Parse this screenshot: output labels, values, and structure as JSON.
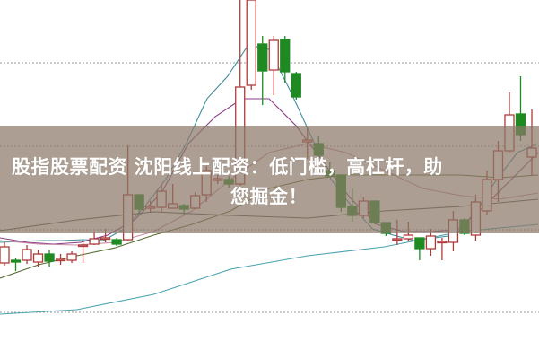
{
  "headline": {
    "line1": "股指股票配资 沈阳线上配资：低门槛，高杠杆，助",
    "line2": "您掘金！"
  },
  "colors": {
    "up": "#b03a3a",
    "down": "#1f8a22",
    "grid": "#999999",
    "banner": "#8c7868"
  },
  "chart_data": {
    "type": "candlestick",
    "grid": true,
    "grid_levels": [
      330,
      237,
      144,
      52
    ],
    "candles": [
      {
        "o": 107,
        "c": 125,
        "h": 130,
        "l": 104
      },
      {
        "o": 110,
        "c": 108,
        "h": 112,
        "l": 98
      },
      {
        "o": 110,
        "c": 122,
        "h": 127,
        "l": 106
      },
      {
        "o": 108,
        "c": 117,
        "h": 122,
        "l": 103
      },
      {
        "o": 117,
        "c": 109,
        "h": 122,
        "l": 103
      },
      {
        "o": 111,
        "c": 111,
        "h": 117,
        "l": 105
      },
      {
        "o": 110,
        "c": 117,
        "h": 120,
        "l": 107
      },
      {
        "o": 127,
        "c": 127,
        "h": 132,
        "l": 107
      },
      {
        "o": 128,
        "c": 134,
        "h": 142,
        "l": 127
      },
      {
        "o": 135,
        "c": 135,
        "h": 145,
        "l": 130
      },
      {
        "o": 133,
        "c": 128,
        "h": 135,
        "l": 126
      },
      {
        "o": 133,
        "c": 183,
        "h": 238,
        "l": 132
      },
      {
        "o": 183,
        "c": 167,
        "h": 183,
        "l": 160
      },
      {
        "o": 168,
        "c": 170,
        "h": 176,
        "l": 163
      },
      {
        "o": 169,
        "c": 187,
        "h": 195,
        "l": 163
      },
      {
        "o": 168,
        "c": 173,
        "h": 195,
        "l": 168
      },
      {
        "o": 171,
        "c": 167,
        "h": 173,
        "l": 160
      },
      {
        "o": 168,
        "c": 182,
        "h": 186,
        "l": 167
      },
      {
        "o": 183,
        "c": 210,
        "h": 215,
        "l": 175
      },
      {
        "o": 199,
        "c": 201,
        "h": 205,
        "l": 195
      },
      {
        "o": 200,
        "c": 195,
        "h": 204,
        "l": 191
      },
      {
        "o": 195,
        "c": 303,
        "h": 400,
        "l": 193
      },
      {
        "o": 305,
        "c": 400,
        "h": 400,
        "l": 300
      },
      {
        "o": 351,
        "c": 321,
        "h": 360,
        "l": 283
      },
      {
        "o": 322,
        "c": 355,
        "h": 360,
        "l": 294
      },
      {
        "o": 356,
        "c": 320,
        "h": 360,
        "l": 308
      },
      {
        "o": 318,
        "c": 292,
        "h": 320,
        "l": 289
      },
      {
        "o": 242,
        "c": 244,
        "h": 257,
        "l": 223
      },
      {
        "o": 240,
        "c": 227,
        "h": 248,
        "l": 223
      },
      {
        "o": 210,
        "c": 204,
        "h": 220,
        "l": 203
      },
      {
        "o": 205,
        "c": 169,
        "h": 205,
        "l": 164
      },
      {
        "o": 170,
        "c": 160,
        "h": 190,
        "l": 153
      },
      {
        "o": 160,
        "c": 176,
        "h": 180,
        "l": 157
      },
      {
        "o": 176,
        "c": 152,
        "h": 176,
        "l": 150
      },
      {
        "o": 152,
        "c": 140,
        "h": 152,
        "l": 137
      },
      {
        "o": 133,
        "c": 134,
        "h": 155,
        "l": 127
      },
      {
        "o": 134,
        "c": 138,
        "h": 153,
        "l": 132
      },
      {
        "o": 135,
        "c": 123,
        "h": 135,
        "l": 110
      },
      {
        "o": 123,
        "c": 137,
        "h": 145,
        "l": 115
      },
      {
        "o": 130,
        "c": 131,
        "h": 135,
        "l": 110
      },
      {
        "o": 130,
        "c": 155,
        "h": 165,
        "l": 120
      },
      {
        "o": 155,
        "c": 140,
        "h": 157,
        "l": 138
      },
      {
        "o": 138,
        "c": 175,
        "h": 183,
        "l": 132
      },
      {
        "o": 165,
        "c": 200,
        "h": 210,
        "l": 160
      },
      {
        "o": 200,
        "c": 232,
        "h": 243,
        "l": 175
      },
      {
        "o": 232,
        "c": 272,
        "h": 297,
        "l": 230
      },
      {
        "o": 273,
        "c": 250,
        "h": 315,
        "l": 243
      },
      {
        "o": 225,
        "c": 235,
        "h": 278,
        "l": 205
      }
    ],
    "moving_averages": [
      {
        "color": "#3f8f9a",
        "values": [
          130,
          131,
          132,
          132,
          133,
          132,
          145,
          170,
          200,
          240,
          290,
          315,
          350,
          345,
          300,
          250,
          200,
          170,
          145,
          138,
          132,
          135,
          138,
          165,
          200,
          230,
          240
        ]
      },
      {
        "color": "#8a3d86",
        "values": [
          135,
          130,
          128,
          130,
          138,
          155,
          185,
          240,
          270,
          290,
          290,
          260,
          220,
          180,
          150,
          142,
          142,
          144,
          170,
          200,
          230
        ]
      },
      {
        "color": "#c98aa3",
        "values": [
          132,
          128,
          127,
          130,
          142,
          165,
          200,
          230,
          240,
          230,
          210,
          190,
          182,
          178,
          185
        ]
      },
      {
        "color": "#556b2f",
        "values": [
          90,
          105,
          115,
          124,
          138,
          150,
          165,
          190,
          200,
          205,
          205,
          205,
          205,
          202,
          205
        ]
      },
      {
        "color": "#4a5a48",
        "values": [
          143,
          155,
          164,
          160,
          157,
          165,
          170,
          178
        ]
      },
      {
        "color": "#4aa3b0",
        "values": [
          50,
          55,
          72,
          100,
          115,
          125,
          142,
          150
        ]
      }
    ]
  }
}
